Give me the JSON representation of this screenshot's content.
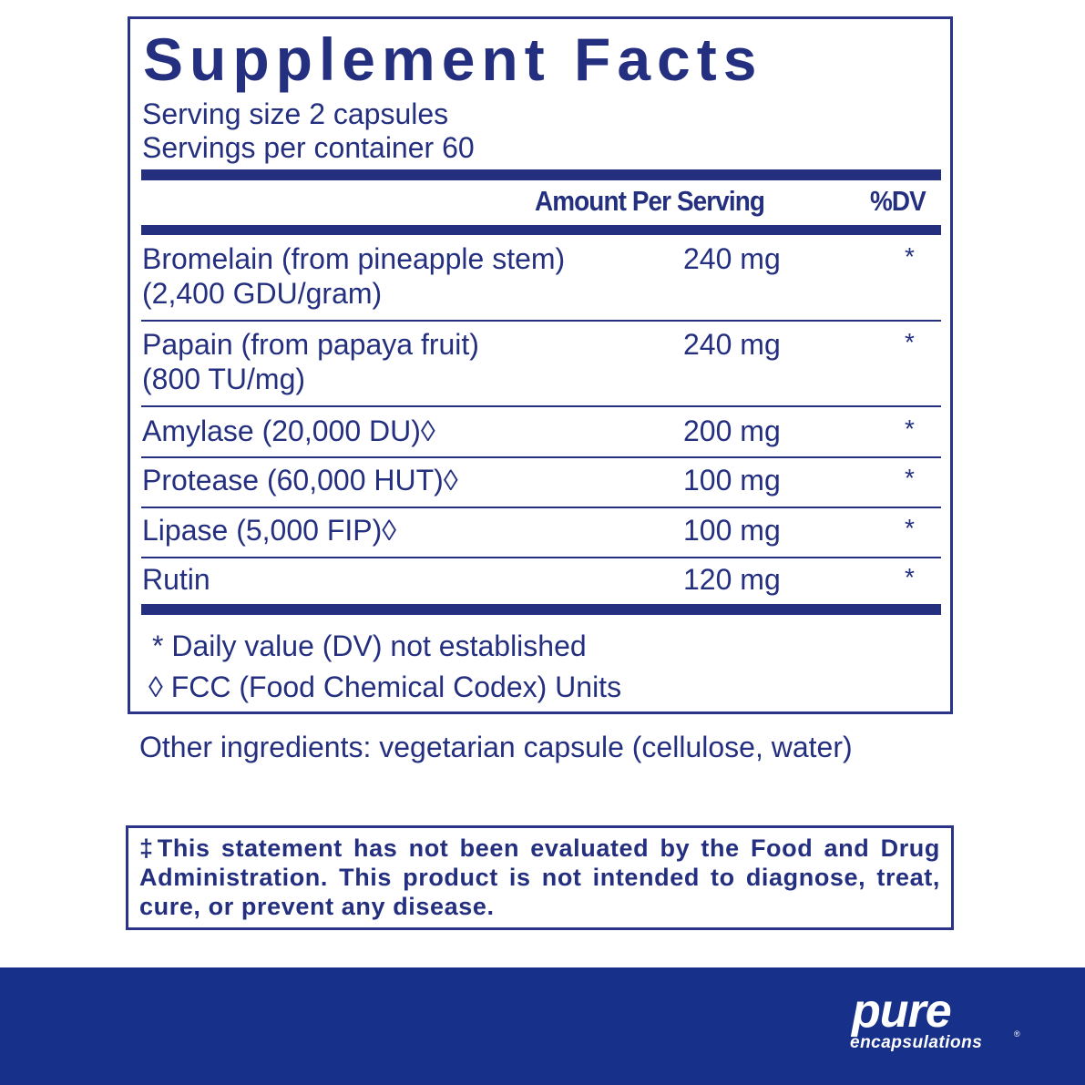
{
  "title": "Supplement Facts",
  "serving_size": "Serving size  2 capsules",
  "servings_per_container": "Servings per container  60",
  "header": {
    "amount": "Amount Per Serving",
    "dv": "%DV"
  },
  "rows": [
    {
      "name": "Bromelain (from pineapple stem)",
      "sub": " (2,400 GDU/gram)",
      "amount": "240 mg",
      "dv": "*"
    },
    {
      "name": "Papain (from papaya fruit)",
      "sub": " (800 TU/mg)",
      "amount": "240 mg",
      "dv": "*"
    },
    {
      "name": "Amylase (20,000 DU)◊",
      "amount": "200 mg",
      "dv": "*"
    },
    {
      "name": "Protease (60,000 HUT)◊",
      "amount": "100 mg",
      "dv": "*"
    },
    {
      "name": "Lipase (5,000 FIP)◊",
      "amount": "100 mg",
      "dv": "*"
    },
    {
      "name": "Rutin",
      "amount": "120 mg",
      "dv": "*"
    }
  ],
  "footnotes": [
    "* Daily value (DV) not established",
    "◊ FCC (Food Chemical Codex) Units"
  ],
  "other_ingredients": "Other ingredients: vegetarian capsule (cellulose, water)",
  "disclaimer": "‡This statement has not been evaluated by the Food and Drug Administration. This product is not intended to diagnose, treat, cure, or prevent any disease.",
  "brand": {
    "line1": "pure",
    "line2": "encapsulations",
    "reg": "®"
  },
  "colors": {
    "text": "#24307f",
    "band": "#17308a"
  }
}
